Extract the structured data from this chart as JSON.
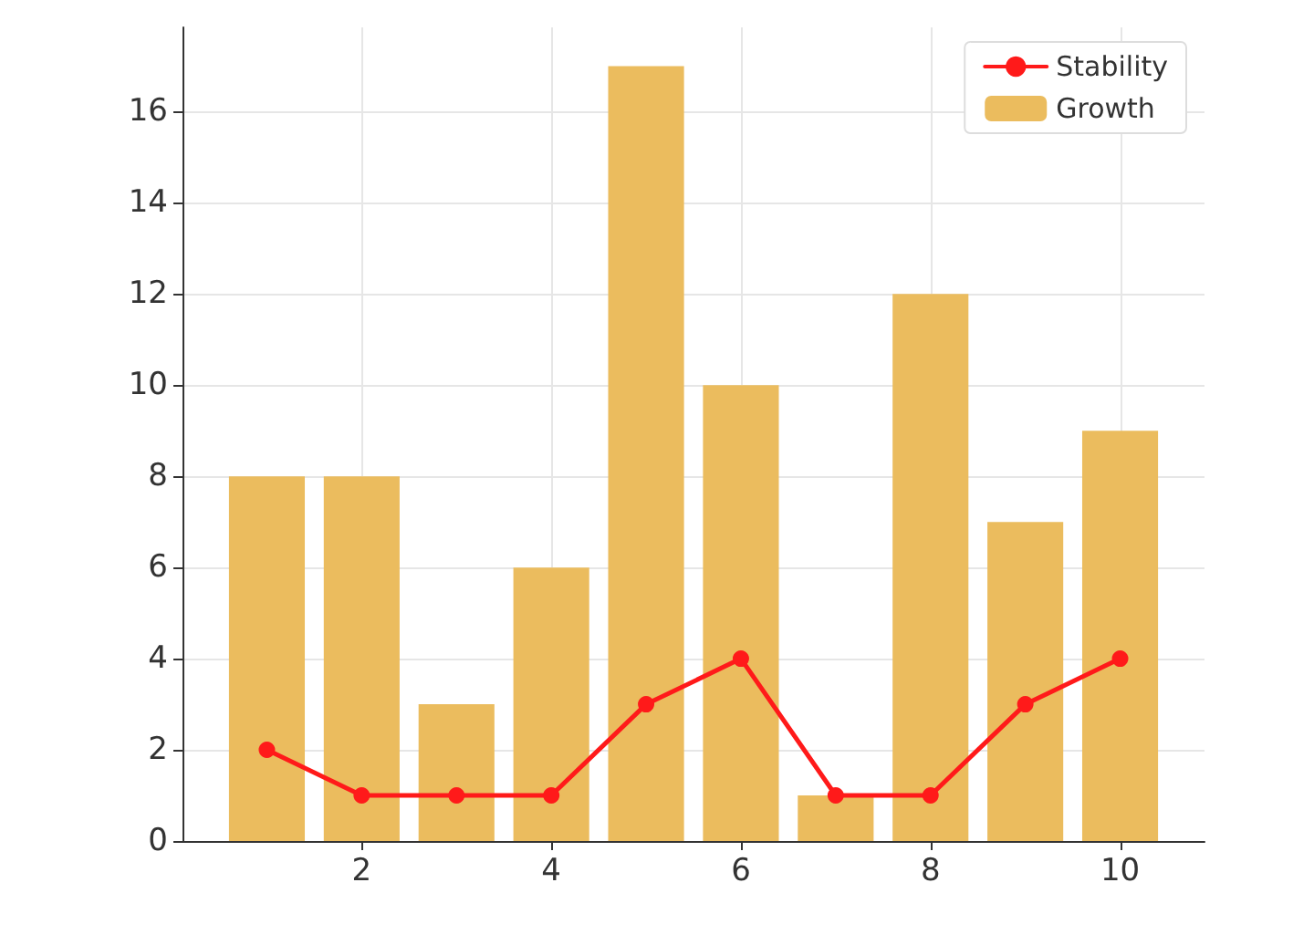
{
  "chart_data": {
    "type": "bar",
    "x": [
      1,
      2,
      3,
      4,
      5,
      6,
      7,
      8,
      9,
      10
    ],
    "series": [
      {
        "name": "Stability",
        "type": "line",
        "color": "#ff1a1a",
        "values": [
          2,
          1,
          1,
          1,
          3,
          4,
          1,
          1,
          3,
          4
        ]
      },
      {
        "name": "Growth",
        "color": "#ebbc5e",
        "values": [
          8,
          8,
          3,
          6,
          17,
          10,
          1,
          12,
          7,
          9
        ]
      }
    ],
    "xlim": [
      0.11,
      10.89
    ],
    "xticks": [
      2,
      4,
      6,
      8,
      10
    ],
    "ylim": [
      0,
      17.85
    ],
    "yticks": [
      0,
      2,
      4,
      6,
      8,
      10,
      12,
      14,
      16
    ],
    "grid": true,
    "legend": "top right",
    "marker": "circle",
    "line_style": "solid"
  }
}
